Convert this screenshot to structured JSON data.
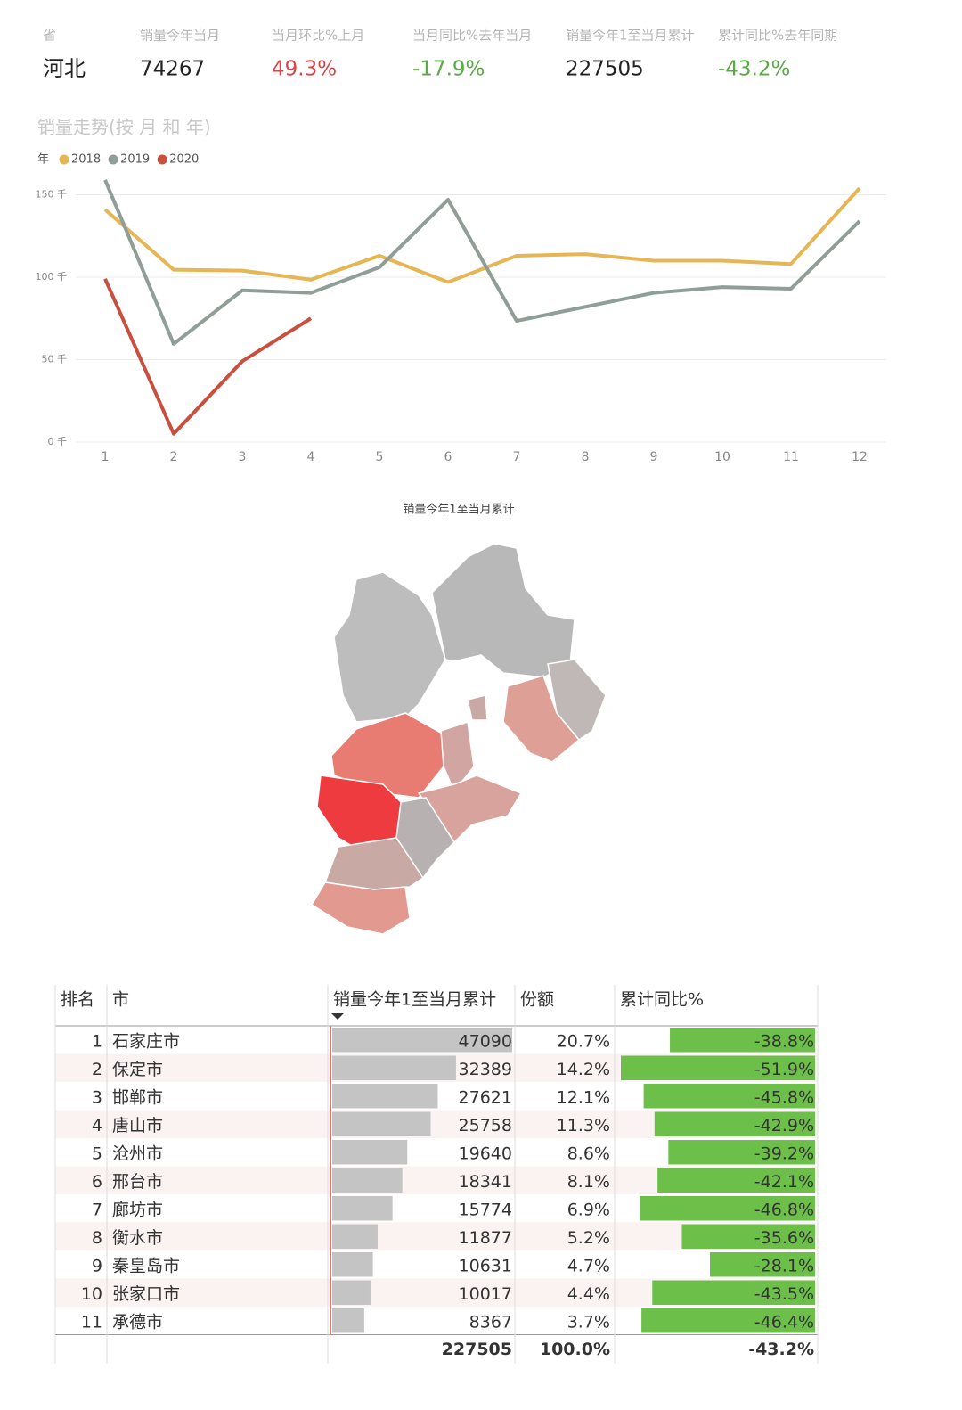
{
  "kpis": {
    "headers": [
      "省",
      "销量今年当月",
      "当月环比%上月",
      "当月同比%去年当月",
      "销量今年1至当月累计",
      "累计同比%去年同期"
    ],
    "values": [
      "河北",
      "74267",
      "49.3%",
      "-17.9%",
      "227505",
      "-43.2%"
    ]
  },
  "chart_data": {
    "type": "line",
    "title": "销量走势(按 月 和 年)",
    "legend_title": "年",
    "categories": [
      "1",
      "2",
      "3",
      "4",
      "5",
      "6",
      "7",
      "8",
      "9",
      "10",
      "11",
      "12"
    ],
    "series": [
      {
        "name": "2018",
        "color": "#e6b655",
        "values": [
          141,
          104.5,
          104,
          98.5,
          113,
          97,
          113,
          114,
          110,
          110,
          108,
          154
        ]
      },
      {
        "name": "2019",
        "color": "#8f9e96",
        "values": [
          159,
          59.5,
          92,
          90.5,
          106,
          147,
          73.5,
          82,
          90.5,
          94,
          93,
          134
        ]
      },
      {
        "name": "2020",
        "color": "#c9503f",
        "values": [
          99,
          5,
          49,
          75,
          null,
          null,
          null,
          null,
          null,
          null,
          null,
          null
        ]
      }
    ],
    "ylim": [
      0,
      160
    ],
    "yticks": [
      {
        "value": 0,
        "label": "0 千"
      },
      {
        "value": 50,
        "label": "50 千"
      },
      {
        "value": 100,
        "label": "100 千"
      },
      {
        "value": 150,
        "label": "150 千"
      }
    ],
    "grid": true
  },
  "map": {
    "title": "销量今年1至当月累计"
  },
  "table": {
    "headers": [
      "排名",
      "市",
      "销量今年1至当月累计",
      "份额",
      "累计同比%"
    ],
    "rows": [
      {
        "rank": 1,
        "city": "石家庄市",
        "sales": 47090,
        "share": "20.7%",
        "yoy": {
          "value": -38.8,
          "label": "-38.8%"
        }
      },
      {
        "rank": 2,
        "city": "保定市",
        "sales": 32389,
        "share": "14.2%",
        "yoy": {
          "value": -51.9,
          "label": "-51.9%"
        }
      },
      {
        "rank": 3,
        "city": "邯郸市",
        "sales": 27621,
        "share": "12.1%",
        "yoy": {
          "value": -45.8,
          "label": "-45.8%"
        }
      },
      {
        "rank": 4,
        "city": "唐山市",
        "sales": 25758,
        "share": "11.3%",
        "yoy": {
          "value": -42.9,
          "label": "-42.9%"
        }
      },
      {
        "rank": 5,
        "city": "沧州市",
        "sales": 19640,
        "share": "8.6%",
        "yoy": {
          "value": -39.2,
          "label": "-39.2%"
        }
      },
      {
        "rank": 6,
        "city": "邢台市",
        "sales": 18341,
        "share": "8.1%",
        "yoy": {
          "value": -42.1,
          "label": "-42.1%"
        }
      },
      {
        "rank": 7,
        "city": "廊坊市",
        "sales": 15774,
        "share": "6.9%",
        "yoy": {
          "value": -46.8,
          "label": "-46.8%"
        }
      },
      {
        "rank": 8,
        "city": "衡水市",
        "sales": 11877,
        "share": "5.2%",
        "yoy": {
          "value": -35.6,
          "label": "-35.6%"
        }
      },
      {
        "rank": 9,
        "city": "秦皇岛市",
        "sales": 10631,
        "share": "4.7%",
        "yoy": {
          "value": -28.1,
          "label": "-28.1%"
        }
      },
      {
        "rank": 10,
        "city": "张家口市",
        "sales": 10017,
        "share": "4.4%",
        "yoy": {
          "value": -43.5,
          "label": "-43.5%"
        }
      },
      {
        "rank": 11,
        "city": "承德市",
        "sales": 8367,
        "share": "3.7%",
        "yoy": {
          "value": -46.4,
          "label": "-46.4%"
        }
      }
    ],
    "total": {
      "sales": "227505",
      "share": "100.0%",
      "yoy": "-43.2%"
    }
  }
}
